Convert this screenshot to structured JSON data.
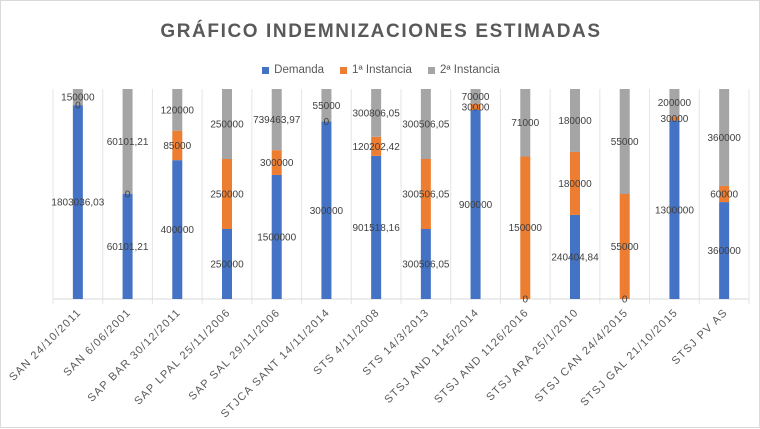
{
  "chart_data": {
    "type": "bar",
    "stacked": "percent",
    "title": "GRÁFICO INDEMNIZACIONES ESTIMADAS",
    "categories": [
      "SAN 24/10/2011",
      "SAN 6/06/2001",
      "SAP BAR 30/12/2011",
      "SAP LPAL 25/11/2006",
      "SAP SAL 29/11/2006",
      "STJCA SANT 14/11/2014",
      "STS 4/11/2008",
      "STS 14/3/2013",
      "STSJ AND 1145/2014",
      "STSJ AND 1126/2016",
      "STSJ ARA 25/1/2010",
      "STSJ CAN 24/4/2015",
      "STSJ GAL 21/10/2015",
      "STSJ PV AS"
    ],
    "series": [
      {
        "name": "Demanda",
        "color": "#4472C4",
        "values": [
          1803036.03,
          60101.21,
          400000,
          250000,
          1500000,
          300000,
          901518.16,
          300506.05,
          900000,
          0,
          240404.84,
          0,
          1300000,
          360000
        ],
        "labels": [
          "1803036,03",
          "60101,21",
          "400000",
          "250000",
          "1500000",
          "300000",
          "901518,16",
          "300506,05",
          "900000",
          "0",
          "240404,84",
          "0",
          "1300000",
          "360000"
        ]
      },
      {
        "name": "1ª Instancia",
        "color": "#ED7D31",
        "values": [
          0,
          0,
          85000,
          250000,
          300000,
          0,
          120202.42,
          300506.05,
          30000,
          150000,
          180000,
          55000,
          30000,
          60000
        ],
        "labels": [
          "0",
          "0",
          "85000",
          "250000",
          "300000",
          "0",
          "120202,42",
          "300506,05",
          "30000",
          "150000",
          "180000",
          "55000",
          "30000",
          "60000"
        ]
      },
      {
        "name": "2ª Instancia",
        "color": "#A5A5A5",
        "values": [
          150000,
          60101.21,
          120000,
          250000,
          739463.97,
          55000,
          300806.05,
          300506.05,
          70000,
          71000,
          180000,
          55000,
          200000,
          360000
        ],
        "labels": [
          "150000",
          "60101,21",
          "120000",
          "250000",
          "739463,97",
          "55000",
          "300806,05",
          "300506,05",
          "70000",
          "71000",
          "180000",
          "55000",
          "200000",
          "360000"
        ]
      }
    ],
    "legend_position": "top",
    "grid": false
  }
}
